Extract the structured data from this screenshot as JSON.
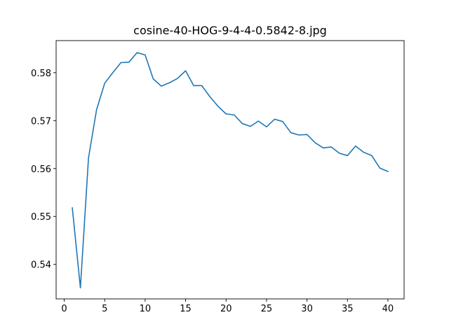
{
  "chart_data": {
    "type": "line",
    "title": "cosine-40-HOG-9-4-4-0.5842-8.jpg",
    "xlabel": "",
    "ylabel": "",
    "xlim": [
      -1.0,
      42.0
    ],
    "ylim": [
      0.5328,
      0.5867
    ],
    "xticks": [
      0,
      5,
      10,
      15,
      20,
      25,
      30,
      35,
      40
    ],
    "yticks": [
      0.54,
      0.55,
      0.56,
      0.57,
      0.58
    ],
    "ytick_labels": [
      "0.54",
      "0.55",
      "0.56",
      "0.57",
      "0.58"
    ],
    "grid": false,
    "series": [
      {
        "color": "#1f77b4",
        "x": [
          1,
          2,
          3,
          4,
          5,
          6,
          7,
          8,
          9,
          10,
          11,
          12,
          13,
          14,
          15,
          16,
          17,
          18,
          19,
          20,
          21,
          22,
          23,
          24,
          25,
          26,
          27,
          28,
          29,
          30,
          31,
          32,
          33,
          34,
          35,
          36,
          37,
          38,
          39,
          40
        ],
        "values": [
          0.5518,
          0.5351,
          0.5622,
          0.5723,
          0.5778,
          0.58,
          0.5821,
          0.5822,
          0.5842,
          0.5837,
          0.5787,
          0.5772,
          0.5779,
          0.5788,
          0.5804,
          0.5773,
          0.5773,
          0.575,
          0.573,
          0.5714,
          0.5712,
          0.5694,
          0.5688,
          0.5699,
          0.5687,
          0.5703,
          0.5698,
          0.5675,
          0.567,
          0.5671,
          0.5654,
          0.5643,
          0.5645,
          0.5632,
          0.5627,
          0.5647,
          0.5634,
          0.5627,
          0.5601,
          0.5594
        ]
      }
    ]
  }
}
